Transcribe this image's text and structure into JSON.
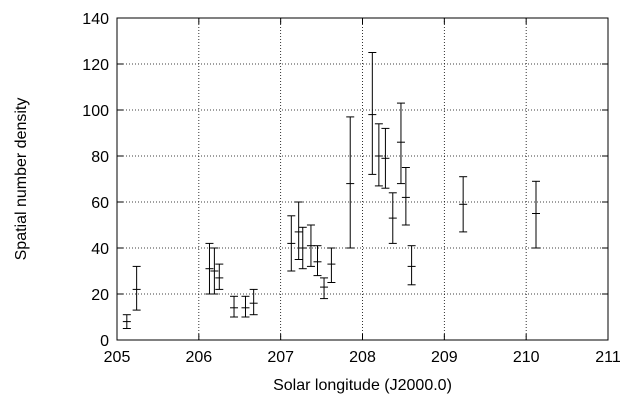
{
  "chart_data": {
    "type": "scatter",
    "xlabel": "Solar longitude (J2000.0)",
    "ylabel": "Spatial number density",
    "xlim": [
      205,
      211
    ],
    "ylim": [
      0,
      140
    ],
    "x_ticks": [
      205,
      206,
      207,
      208,
      209,
      210,
      211
    ],
    "y_ticks": [
      0,
      20,
      40,
      60,
      80,
      100,
      120,
      140
    ],
    "grid": true,
    "series": [
      {
        "points": [
          {
            "x": 205.12,
            "y": 8,
            "lo": 5,
            "hi": 11
          },
          {
            "x": 205.24,
            "y": 22,
            "lo": 13,
            "hi": 32
          },
          {
            "x": 206.13,
            "y": 31,
            "lo": 20,
            "hi": 42
          },
          {
            "x": 206.19,
            "y": 30,
            "lo": 20,
            "hi": 40
          },
          {
            "x": 206.25,
            "y": 27,
            "lo": 22,
            "hi": 33
          },
          {
            "x": 206.43,
            "y": 14,
            "lo": 10,
            "hi": 19
          },
          {
            "x": 206.57,
            "y": 14,
            "lo": 10,
            "hi": 19
          },
          {
            "x": 206.67,
            "y": 16,
            "lo": 11,
            "hi": 22
          },
          {
            "x": 207.13,
            "y": 42,
            "lo": 30,
            "hi": 54
          },
          {
            "x": 207.22,
            "y": 47,
            "lo": 35,
            "hi": 60
          },
          {
            "x": 207.27,
            "y": 40,
            "lo": 31,
            "hi": 49
          },
          {
            "x": 207.37,
            "y": 41,
            "lo": 32,
            "hi": 50
          },
          {
            "x": 207.45,
            "y": 34,
            "lo": 28,
            "hi": 41
          },
          {
            "x": 207.53,
            "y": 23,
            "lo": 18,
            "hi": 27
          },
          {
            "x": 207.62,
            "y": 33,
            "lo": 25,
            "hi": 40
          },
          {
            "x": 207.85,
            "y": 68,
            "lo": 40,
            "hi": 97
          },
          {
            "x": 208.12,
            "y": 98,
            "lo": 72,
            "hi": 125
          },
          {
            "x": 208.2,
            "y": 80,
            "lo": 67,
            "hi": 94
          },
          {
            "x": 208.28,
            "y": 79,
            "lo": 66,
            "hi": 92
          },
          {
            "x": 208.37,
            "y": 53,
            "lo": 42,
            "hi": 64
          },
          {
            "x": 208.47,
            "y": 86,
            "lo": 68,
            "hi": 103
          },
          {
            "x": 208.53,
            "y": 62,
            "lo": 50,
            "hi": 75
          },
          {
            "x": 208.6,
            "y": 32,
            "lo": 24,
            "hi": 41
          },
          {
            "x": 209.23,
            "y": 59,
            "lo": 47,
            "hi": 71
          },
          {
            "x": 210.12,
            "y": 55,
            "lo": 40,
            "hi": 69
          }
        ]
      }
    ]
  }
}
